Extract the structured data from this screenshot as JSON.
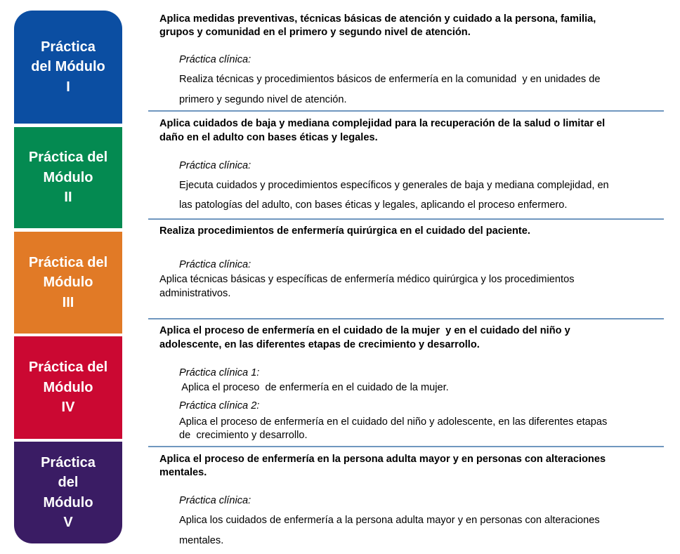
{
  "colors": {
    "module_1": "#0b4ea2",
    "module_2": "#048a51",
    "module_3": "#e17a26",
    "module_4": "#cb0832",
    "module_5": "#3a1c64",
    "separator": "#7097bf"
  },
  "modules": [
    {
      "label": "Práctica\ndel Módulo\nI",
      "heading": [
        "Aplica medidas preventivas, técnicas básicas de atención y cuidado a la persona, familia,",
        "grupos y comunidad en el primero y segundo nivel de atención."
      ],
      "clinic_label": "Práctica clínica:",
      "body": [
        "Realiza técnicas y procedimientos básicos de enfermería en la comunidad  y en unidades de",
        "primero y segundo nivel de atención."
      ]
    },
    {
      "label": "Práctica del\nMódulo\nII",
      "heading": [
        "Aplica cuidados de baja y mediana complejidad para la recuperación de la salud o limitar el",
        "daño en el adulto con bases éticas y legales."
      ],
      "clinic_label": "Práctica clínica:",
      "body": [
        "Ejecuta cuidados y procedimientos específicos y generales de baja y mediana complejidad, en",
        "las patologías del adulto, con bases éticas y legales, aplicando el proceso enfermero."
      ]
    },
    {
      "label": "Práctica del\nMódulo\nIII",
      "heading": [
        "Realiza procedimientos de enfermería quirúrgica en el cuidado del paciente."
      ],
      "clinic_label": "Práctica clínica:",
      "body": [
        "Aplica técnicas básicas y específicas de enfermería médico quirúrgica y los procedimientos",
        "administrativos."
      ]
    },
    {
      "label": "Práctica del\nMódulo\nIV",
      "heading": [
        "Aplica el proceso de enfermería en el cuidado de la mujer  y en el cuidado del niño y",
        "adolescente, en las diferentes etapas de crecimiento y desarrollo."
      ],
      "clinic_label": "Práctica clínica 1:",
      "body": [
        " Aplica el proceso  de enfermería en el cuidado de la mujer."
      ],
      "clinic_label_2": "Práctica clínica 2:",
      "body_2": [
        "Aplica el proceso de enfermería en el cuidado del niño y adolescente, en las diferentes etapas",
        "de  crecimiento y desarrollo."
      ]
    },
    {
      "label": "Práctica\ndel\nMódulo\nV",
      "heading": [
        "Aplica el proceso de enfermería en la persona adulta mayor y en personas con alteraciones",
        "mentales."
      ],
      "clinic_label": "Práctica clínica:",
      "body": [
        "Aplica los cuidados de enfermería a la persona adulta mayor y en personas con alteraciones",
        "mentales."
      ]
    }
  ]
}
